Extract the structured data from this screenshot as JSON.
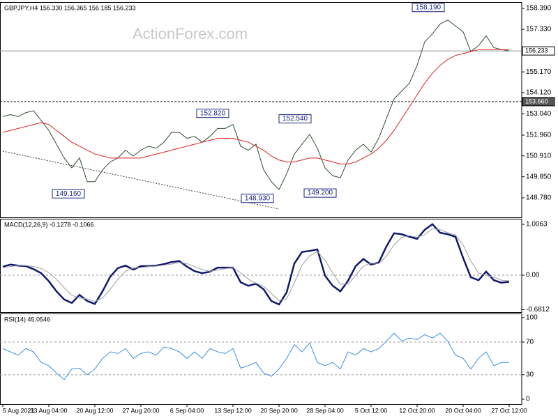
{
  "chart_data": [
    {
      "type": "line",
      "title": "GBPJPY,H4  156.330 156.365 156.185 156.233",
      "watermark": "ActionForex.com",
      "categories": [
        "5 Aug 2021",
        null,
        null,
        null,
        null,
        null,
        "13 Aug 04:00",
        null,
        null,
        null,
        null,
        null,
        "20 Aug 12:00",
        null,
        null,
        null,
        null,
        null,
        "27 Aug 20:00",
        null,
        null,
        null,
        null,
        null,
        "6 Sep 04:00",
        null,
        null,
        null,
        null,
        null,
        "13 Sep 12:00",
        null,
        null,
        null,
        null,
        null,
        "20 Sep 20:00",
        null,
        null,
        null,
        null,
        null,
        "28 Sep 04:00",
        null,
        null,
        null,
        null,
        null,
        "5 Oct 12:00",
        null,
        null,
        null,
        null,
        null,
        "12 Oct 20:00",
        null,
        null,
        null,
        null,
        null,
        "20 Oct 04:00",
        null,
        null,
        null,
        null,
        null,
        "27 Oct 12:00"
      ],
      "series": [
        {
          "color": "#2f4f2f",
          "values": [
            152.9,
            153.0,
            152.9,
            153.1,
            153.2,
            152.7,
            152.2,
            151.5,
            150.8,
            150.3,
            150.8,
            149.6,
            149.6,
            150.2,
            150.6,
            150.8,
            151.2,
            150.9,
            151.2,
            151.4,
            151.3,
            151.6,
            152.1,
            152.1,
            151.8,
            151.9,
            151.6,
            151.9,
            152.3,
            152.3,
            152.5,
            151.4,
            151.2,
            151.5,
            150.2,
            149.6,
            149.2,
            150.0,
            151.0,
            151.5,
            152.0,
            151.3,
            150.3,
            149.9,
            149.8,
            150.7,
            151.2,
            151.5,
            151.1,
            151.8,
            152.8,
            153.8,
            154.2,
            154.6,
            155.5,
            156.7,
            157.1,
            157.6,
            157.8,
            157.5,
            157.2,
            156.2,
            156.5,
            157.0,
            156.4,
            156.3,
            156.233
          ]
        },
        {
          "color": "#e02020",
          "values": [
            152.1,
            152.2,
            152.3,
            152.4,
            152.5,
            152.6,
            152.5,
            152.2,
            151.9,
            151.6,
            151.4,
            151.2,
            151.0,
            150.9,
            150.8,
            150.8,
            150.8,
            150.8,
            150.8,
            150.9,
            151.0,
            151.1,
            151.2,
            151.3,
            151.4,
            151.5,
            151.6,
            151.7,
            151.8,
            151.8,
            151.8,
            151.7,
            151.6,
            151.4,
            151.2,
            150.9,
            150.7,
            150.6,
            150.6,
            150.7,
            150.8,
            150.8,
            150.7,
            150.6,
            150.5,
            150.5,
            150.6,
            150.8,
            151.0,
            151.3,
            151.7,
            152.2,
            152.8,
            153.4,
            154.0,
            154.6,
            155.1,
            155.5,
            155.8,
            156.0,
            156.1,
            156.2,
            156.3,
            156.3,
            156.3,
            156.3,
            156.3
          ]
        }
      ],
      "ylim": [
        147.79,
        158.71
      ],
      "yticks": [
        {
          "value": 148.78,
          "label": "148.780"
        },
        {
          "value": 149.85,
          "label": "149.850"
        },
        {
          "value": 150.91,
          "label": "150.910"
        },
        {
          "value": 151.96,
          "label": "151.960"
        },
        {
          "value": 153.04,
          "label": "153.040"
        },
        {
          "value": 154.12,
          "label": "154.120"
        },
        {
          "value": 155.17,
          "label": "155.170"
        },
        {
          "value": 156.25,
          "label": "156.250"
        },
        {
          "value": 157.33,
          "label": "157.330"
        },
        {
          "value": 158.39,
          "label": "158.390"
        }
      ],
      "levels": [
        {
          "value": 156.233,
          "label": "156.233",
          "style": "solid"
        },
        {
          "value": 153.66,
          "label": "153.660",
          "style": "dashed"
        }
      ],
      "annotations": [
        {
          "value": 158.19,
          "label": "158.190"
        },
        {
          "value": 152.82,
          "label": "152.820"
        },
        {
          "value": 152.54,
          "label": "152.540"
        },
        {
          "value": 149.16,
          "label": "149.160"
        },
        {
          "value": 148.93,
          "label": "148.930"
        },
        {
          "value": 149.2,
          "label": "149.200"
        }
      ]
    },
    {
      "type": "line",
      "title": "MACD(12,26,9) -0.1278 -0.1066",
      "series": [
        {
          "color": "#10186e",
          "values": [
            0.17,
            0.21,
            0.19,
            0.18,
            0.12,
            0.04,
            -0.12,
            -0.32,
            -0.48,
            -0.55,
            -0.39,
            -0.51,
            -0.57,
            -0.32,
            -0.03,
            0.14,
            0.19,
            0.11,
            0.18,
            0.18,
            0.19,
            0.22,
            0.26,
            0.28,
            0.17,
            0.08,
            0.04,
            0.07,
            0.15,
            0.15,
            0.15,
            -0.14,
            -0.21,
            -0.17,
            -0.28,
            -0.51,
            -0.58,
            -0.34,
            0.23,
            0.46,
            0.48,
            0.51,
            -0.01,
            -0.21,
            -0.32,
            -0.11,
            0.18,
            0.32,
            0.21,
            0.25,
            0.57,
            0.83,
            0.81,
            0.76,
            0.72,
            0.9,
            1.01,
            0.84,
            0.81,
            0.76,
            0.34,
            -0.04,
            -0.1,
            0.07,
            -0.1,
            -0.15,
            -0.13
          ]
        },
        {
          "color": "#a0a0a0",
          "values": [
            0.15,
            0.17,
            0.19,
            0.19,
            0.17,
            0.13,
            0.05,
            -0.08,
            -0.25,
            -0.4,
            -0.45,
            -0.47,
            -0.52,
            -0.45,
            -0.28,
            -0.08,
            0.08,
            0.14,
            0.15,
            0.17,
            0.18,
            0.2,
            0.22,
            0.25,
            0.23,
            0.17,
            0.11,
            0.08,
            0.1,
            0.13,
            0.15,
            0.05,
            -0.08,
            -0.16,
            -0.22,
            -0.36,
            -0.5,
            -0.47,
            -0.15,
            0.2,
            0.38,
            0.47,
            0.3,
            0.04,
            -0.18,
            -0.18,
            0.0,
            0.18,
            0.24,
            0.23,
            0.38,
            0.6,
            0.75,
            0.78,
            0.75,
            0.8,
            0.92,
            0.9,
            0.84,
            0.8,
            0.6,
            0.28,
            0.04,
            0.0,
            -0.04,
            -0.1,
            -0.11
          ]
        }
      ],
      "ylim": [
        -0.731,
        1.117
      ],
      "yticks": [
        {
          "value": -0.6812,
          "label": "-0.6812"
        },
        {
          "value": 0,
          "label": "0.00"
        },
        {
          "value": 1.0063,
          "label": "1.0063"
        }
      ],
      "dashed_levels": [
        0
      ]
    },
    {
      "type": "line",
      "title": "RSI(14) 45.0546",
      "series": [
        {
          "color": "#3a8ee6",
          "values": [
            62,
            58,
            54,
            62,
            58,
            45,
            41,
            32,
            24,
            37,
            38,
            30,
            37,
            50,
            58,
            56,
            62,
            50,
            56,
            58,
            54,
            64,
            62,
            58,
            50,
            58,
            50,
            62,
            58,
            56,
            62,
            38,
            41,
            45,
            32,
            28,
            37,
            50,
            67,
            58,
            69,
            45,
            41,
            45,
            37,
            58,
            54,
            62,
            58,
            62,
            71,
            81,
            71,
            75,
            73,
            79,
            75,
            81,
            71,
            54,
            50,
            37,
            50,
            58,
            41,
            45,
            45.0546
          ]
        }
      ],
      "ylim": [
        -6,
        105
      ],
      "yticks": [
        0,
        30,
        70,
        100
      ],
      "dashed_levels": [
        30,
        70
      ]
    }
  ]
}
